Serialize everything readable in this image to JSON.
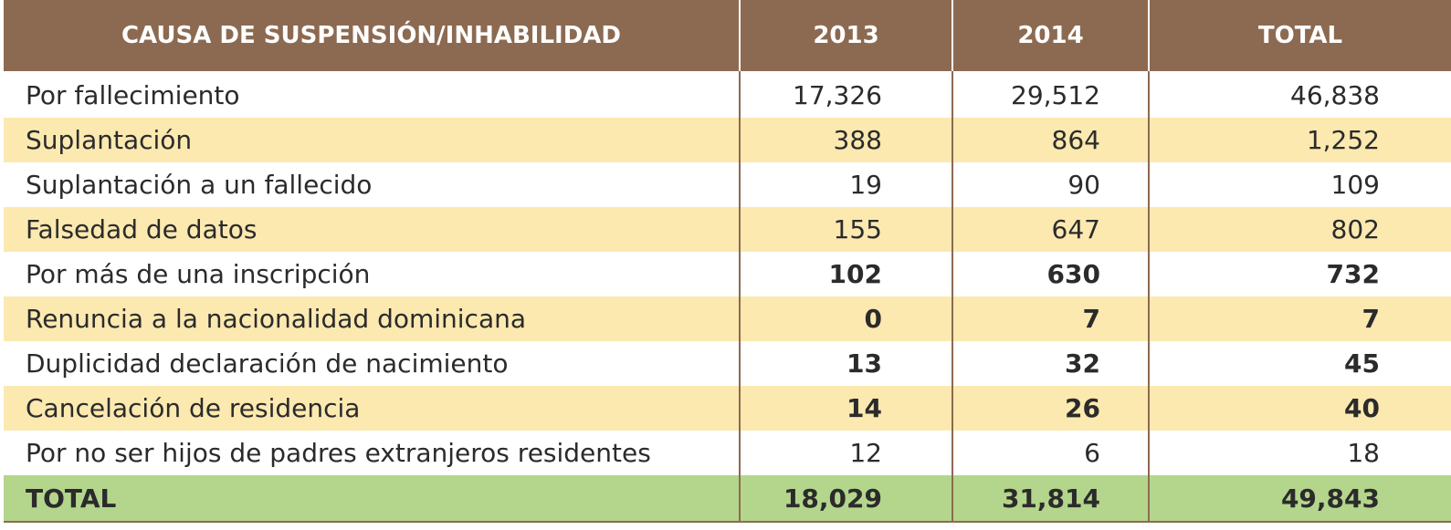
{
  "header": {
    "cause": "CAUSA DE SUSPENSIÓN/INHABILIDAD",
    "y2013": "2013",
    "y2014": "2014",
    "total": "TOTAL"
  },
  "rows": [
    {
      "cause": "Por fallecimiento",
      "y2013": "17,326",
      "y2014": "29,512",
      "total": "46,838",
      "bold": false
    },
    {
      "cause": "Suplantación",
      "y2013": "388",
      "y2014": "864",
      "total": "1,252",
      "bold": false
    },
    {
      "cause": "Suplantación a un fallecido",
      "y2013": "19",
      "y2014": "90",
      "total": "109",
      "bold": false
    },
    {
      "cause": "Falsedad de datos",
      "y2013": "155",
      "y2014": "647",
      "total": "802",
      "bold": false
    },
    {
      "cause": "Por más  de una inscripción",
      "y2013": "102",
      "y2014": "630",
      "total": "732",
      "bold": true
    },
    {
      "cause": "Renuncia a la nacionalidad dominicana",
      "y2013": "0",
      "y2014": "7",
      "total": "7",
      "bold": true
    },
    {
      "cause": "Duplicidad declaración de nacimiento",
      "y2013": "13",
      "y2014": "32",
      "total": "45",
      "bold": true
    },
    {
      "cause": "Cancelación de residencia",
      "y2013": "14",
      "y2014": "26",
      "total": "40",
      "bold": true
    },
    {
      "cause": "Por no ser hijos  de padres extranjeros residentes",
      "y2013": "12",
      "y2014": "6",
      "total": "18",
      "bold": false
    }
  ],
  "total_row": {
    "cause": "TOTAL",
    "y2013": "18,029",
    "y2014": "31,814",
    "total": "49,843"
  },
  "colors": {
    "header_bg": "#8c6a51",
    "stripe": "#fbe9b0",
    "total_bg": "#b4d68c"
  }
}
